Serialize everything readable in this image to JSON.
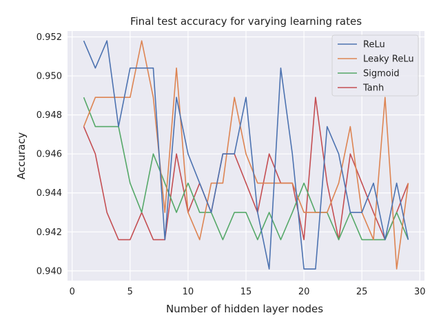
{
  "chart_data": {
    "type": "line",
    "title": "Final test accuracy for varying learning rates",
    "xlabel": "Number of hidden layer nodes",
    "ylabel": "Accuracy",
    "xlim": [
      -0.4,
      30.4
    ],
    "ylim": [
      0.9395,
      0.9523
    ],
    "xticks": [
      0,
      5,
      10,
      15,
      20,
      25,
      30
    ],
    "yticks": [
      0.94,
      0.942,
      0.944,
      0.946,
      0.948,
      0.95,
      0.952
    ],
    "ytick_labels": [
      "0.940",
      "0.942",
      "0.944",
      "0.946",
      "0.948",
      "0.950",
      "0.952"
    ],
    "grid": true,
    "legend_position": "top-right",
    "x": [
      1,
      2,
      3,
      4,
      5,
      6,
      7,
      8,
      9,
      10,
      11,
      12,
      13,
      14,
      15,
      16,
      17,
      18,
      19,
      20,
      21,
      22,
      23,
      24,
      25,
      26,
      27,
      28,
      29
    ],
    "series": [
      {
        "name": "ReLu",
        "color": "#4c72b0",
        "values": [
          0.9518,
          0.9504,
          0.9518,
          0.9474,
          0.9504,
          0.9504,
          0.9504,
          0.9416,
          0.9489,
          0.946,
          0.9445,
          0.943,
          0.946,
          0.946,
          0.9489,
          0.943,
          0.9401,
          0.9504,
          0.946,
          0.9401,
          0.9401,
          0.9474,
          0.946,
          0.943,
          0.943,
          0.9445,
          0.9416,
          0.9445,
          0.9416
        ]
      },
      {
        "name": "Leaky ReLu",
        "color": "#dd8452",
        "values": [
          0.9474,
          0.9489,
          0.9489,
          0.9489,
          0.9489,
          0.9518,
          0.9489,
          0.943,
          0.9504,
          0.943,
          0.9416,
          0.9445,
          0.9445,
          0.9489,
          0.946,
          0.9445,
          0.9445,
          0.9445,
          0.9445,
          0.943,
          0.943,
          0.943,
          0.9445,
          0.9474,
          0.943,
          0.9416,
          0.9489,
          0.9401,
          0.9445
        ]
      },
      {
        "name": "Sigmoid",
        "color": "#55a868",
        "values": [
          0.9489,
          0.9474,
          0.9474,
          0.9474,
          0.9445,
          0.943,
          0.946,
          0.9445,
          0.943,
          0.9445,
          0.943,
          0.943,
          0.9416,
          0.943,
          0.943,
          0.9416,
          0.943,
          0.9416,
          0.943,
          0.9445,
          0.943,
          0.943,
          0.9416,
          0.943,
          0.9416,
          0.9416,
          0.9416,
          0.943,
          0.9416
        ]
      },
      {
        "name": "Tanh",
        "color": "#c44e52",
        "values": [
          0.9474,
          0.946,
          0.943,
          0.9416,
          0.9416,
          0.943,
          0.9416,
          0.9416,
          0.946,
          0.943,
          0.9445,
          0.943,
          0.946,
          0.946,
          0.9445,
          0.943,
          0.946,
          0.9445,
          0.9445,
          0.9416,
          0.9489,
          0.9445,
          0.9416,
          0.946,
          0.9445,
          0.943,
          0.9416,
          0.943,
          0.9445
        ]
      }
    ]
  }
}
